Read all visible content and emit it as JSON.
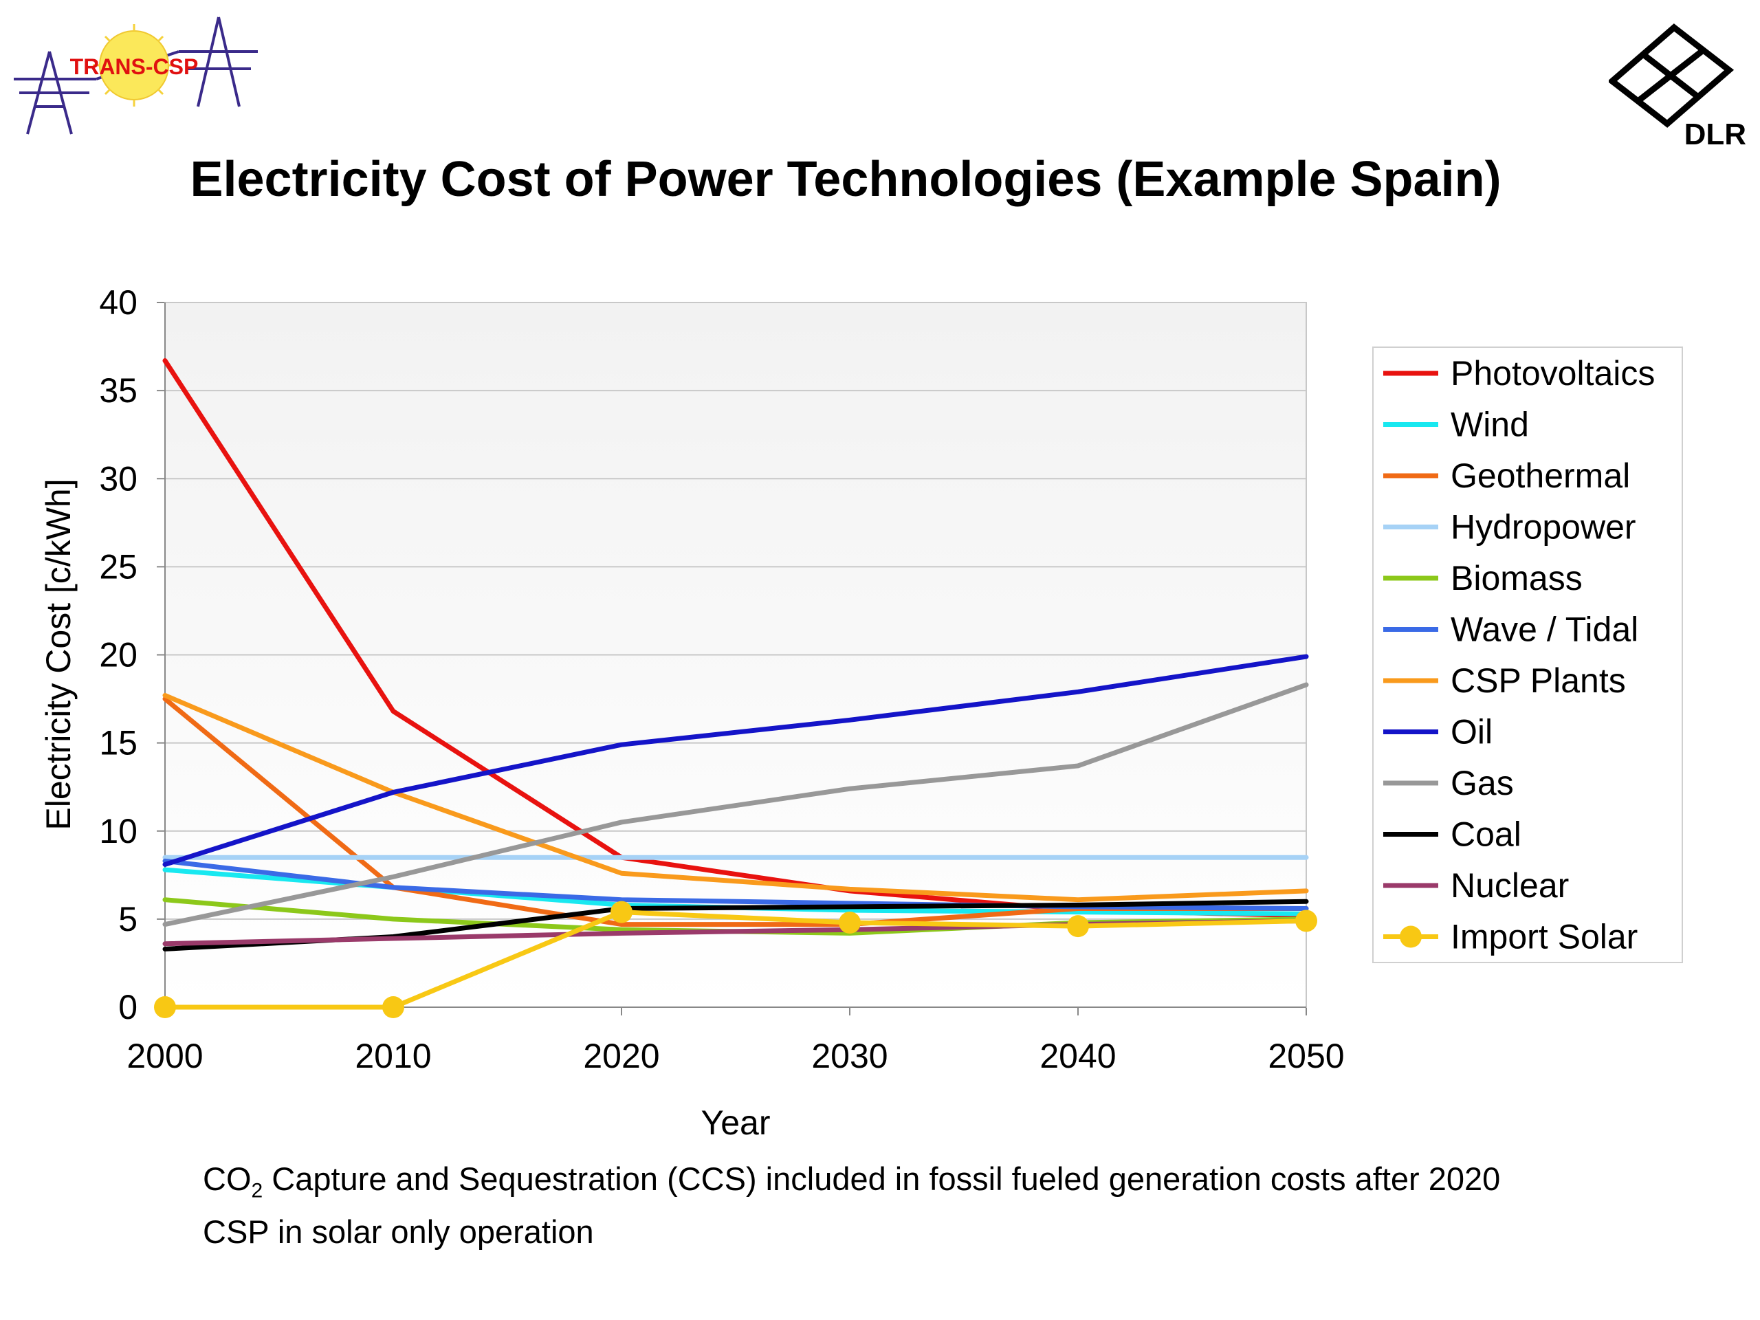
{
  "logos": {
    "left_text": "TRANS-CSP",
    "right_text": "DLR"
  },
  "notes": {
    "line1_co": "CO",
    "line1_sub": "2",
    "line1_rest": " Capture and Sequestration (CCS) included in fossil fueled generation costs after 2020",
    "line2": "CSP in solar only operation"
  },
  "colors": {
    "plot_background_top": "#f2f2f2",
    "gridline": "#c8c8c8"
  },
  "chart_data": {
    "type": "line",
    "title": "Electricity Cost of Power Technologies (Example Spain)",
    "xlabel": "Year",
    "ylabel": "Electricity Cost [c/kWh]",
    "x": [
      2000,
      2010,
      2020,
      2030,
      2040,
      2050
    ],
    "xlim": [
      2000,
      2050
    ],
    "ylim": [
      0,
      40
    ],
    "xticks": [
      2000,
      2010,
      2020,
      2030,
      2040,
      2050
    ],
    "yticks": [
      0,
      5,
      10,
      15,
      20,
      25,
      30,
      35,
      40
    ],
    "grid": true,
    "legend": "right",
    "series": [
      {
        "name": "Photovoltaics",
        "color": "#e8120f",
        "values": [
          36.7,
          16.8,
          8.5,
          6.6,
          5.5,
          5.2
        ]
      },
      {
        "name": "Wind",
        "color": "#18e8f0",
        "values": [
          7.8,
          6.8,
          5.8,
          5.5,
          5.4,
          5.3
        ]
      },
      {
        "name": "Geothermal",
        "color": "#f06a15",
        "values": [
          17.5,
          6.8,
          4.7,
          4.7,
          5.6,
          5.6
        ]
      },
      {
        "name": "Hydropower",
        "color": "#a6d2f6",
        "values": [
          8.5,
          8.5,
          8.5,
          8.5,
          8.5,
          8.5
        ]
      },
      {
        "name": "Biomass",
        "color": "#8cc81a",
        "values": [
          6.1,
          5.0,
          4.4,
          4.2,
          4.8,
          5.0
        ]
      },
      {
        "name": "Wave / Tidal",
        "color": "#3a6ae6",
        "values": [
          8.3,
          6.8,
          6.1,
          5.9,
          5.7,
          5.6
        ]
      },
      {
        "name": "CSP Plants",
        "color": "#f99a1c",
        "values": [
          17.7,
          12.2,
          7.6,
          6.7,
          6.1,
          6.6
        ]
      },
      {
        "name": "Oil",
        "color": "#1414c8",
        "values": [
          8.1,
          12.2,
          14.9,
          16.3,
          17.9,
          19.9
        ]
      },
      {
        "name": "Gas",
        "color": "#989898",
        "values": [
          4.7,
          7.4,
          10.5,
          12.4,
          13.7,
          18.3
        ]
      },
      {
        "name": "Coal",
        "color": "#000000",
        "values": [
          3.3,
          4.0,
          5.6,
          5.7,
          5.8,
          6.0
        ]
      },
      {
        "name": "Nuclear",
        "color": "#9a3a6a",
        "values": [
          3.6,
          3.9,
          4.2,
          4.4,
          4.7,
          4.9
        ]
      },
      {
        "name": "Import Solar",
        "color": "#f8c814",
        "marker": "circle",
        "values": [
          0.0,
          0.0,
          5.4,
          4.8,
          4.6,
          4.9
        ]
      }
    ]
  }
}
